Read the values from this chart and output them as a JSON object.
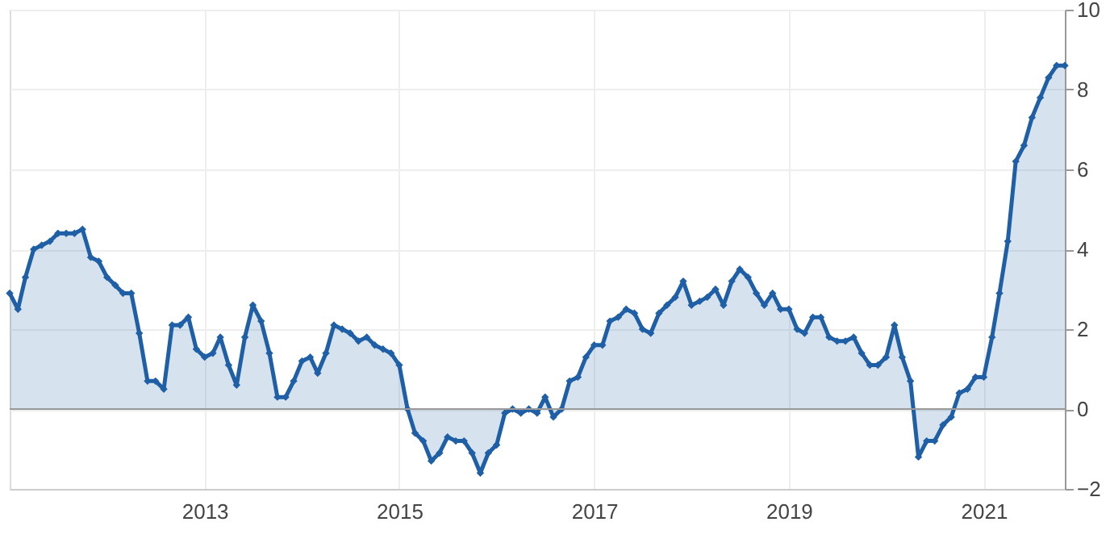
{
  "chart_data": {
    "type": "area",
    "x": [
      "2011-01",
      "2011-02",
      "2011-03",
      "2011-04",
      "2011-05",
      "2011-06",
      "2011-07",
      "2011-08",
      "2011-09",
      "2011-10",
      "2011-11",
      "2011-12",
      "2012-01",
      "2012-02",
      "2012-03",
      "2012-04",
      "2012-05",
      "2012-06",
      "2012-07",
      "2012-08",
      "2012-09",
      "2012-10",
      "2012-11",
      "2012-12",
      "2013-01",
      "2013-02",
      "2013-03",
      "2013-04",
      "2013-05",
      "2013-06",
      "2013-07",
      "2013-08",
      "2013-09",
      "2013-10",
      "2013-11",
      "2013-12",
      "2014-01",
      "2014-02",
      "2014-03",
      "2014-04",
      "2014-05",
      "2014-06",
      "2014-07",
      "2014-08",
      "2014-09",
      "2014-10",
      "2014-11",
      "2014-12",
      "2015-01",
      "2015-02",
      "2015-03",
      "2015-04",
      "2015-05",
      "2015-06",
      "2015-07",
      "2015-08",
      "2015-09",
      "2015-10",
      "2015-11",
      "2015-12",
      "2016-01",
      "2016-02",
      "2016-03",
      "2016-04",
      "2016-05",
      "2016-06",
      "2016-07",
      "2016-08",
      "2016-09",
      "2016-10",
      "2016-11",
      "2016-12",
      "2017-01",
      "2017-02",
      "2017-03",
      "2017-04",
      "2017-05",
      "2017-06",
      "2017-07",
      "2017-08",
      "2017-09",
      "2017-10",
      "2017-11",
      "2017-12",
      "2018-01",
      "2018-02",
      "2018-03",
      "2018-04",
      "2018-05",
      "2018-06",
      "2018-07",
      "2018-08",
      "2018-09",
      "2018-10",
      "2018-11",
      "2018-12",
      "2019-01",
      "2019-02",
      "2019-03",
      "2019-04",
      "2019-05",
      "2019-06",
      "2019-07",
      "2019-08",
      "2019-09",
      "2019-10",
      "2019-11",
      "2019-12",
      "2020-01",
      "2020-02",
      "2020-03",
      "2020-04",
      "2020-05",
      "2020-06",
      "2020-07",
      "2020-08",
      "2020-09",
      "2020-10",
      "2020-11",
      "2020-12",
      "2021-01",
      "2021-02",
      "2021-03",
      "2021-04",
      "2021-05",
      "2021-06",
      "2021-07",
      "2021-08",
      "2021-09",
      "2021-10",
      "2021-11"
    ],
    "series": [
      {
        "color": "#1f5fa6",
        "values": [
          2.9,
          2.5,
          3.3,
          4.0,
          4.1,
          4.2,
          4.4,
          4.4,
          4.4,
          4.5,
          3.8,
          3.7,
          3.3,
          3.1,
          2.9,
          2.9,
          1.9,
          0.7,
          0.7,
          0.5,
          2.1,
          2.1,
          2.3,
          1.5,
          1.3,
          1.4,
          1.8,
          1.1,
          0.6,
          1.8,
          2.6,
          2.2,
          1.4,
          0.3,
          0.3,
          0.7,
          1.2,
          1.3,
          0.9,
          1.4,
          2.1,
          2.0,
          1.9,
          1.7,
          1.8,
          1.6,
          1.5,
          1.4,
          1.1,
          0.0,
          -0.6,
          -0.8,
          -1.3,
          -1.1,
          -0.7,
          -0.8,
          -0.8,
          -1.1,
          -1.6,
          -1.1,
          -0.9,
          -0.1,
          0.0,
          -0.1,
          0.0,
          -0.1,
          0.3,
          -0.2,
          0.0,
          0.7,
          0.8,
          1.3,
          1.6,
          1.6,
          2.2,
          2.3,
          2.5,
          2.4,
          2.0,
          1.9,
          2.4,
          2.6,
          2.8,
          3.2,
          2.6,
          2.7,
          2.8,
          3.0,
          2.6,
          3.2,
          3.5,
          3.3,
          2.9,
          2.6,
          2.9,
          2.5,
          2.5,
          2.0,
          1.9,
          2.3,
          2.3,
          1.8,
          1.7,
          1.7,
          1.8,
          1.4,
          1.1,
          1.1,
          1.3,
          2.1,
          1.3,
          0.7,
          -1.2,
          -0.8,
          -0.8,
          -0.4,
          -0.2,
          0.4,
          0.5,
          0.8,
          0.8,
          1.8,
          2.9,
          4.2,
          6.2,
          6.6,
          7.3,
          7.8,
          8.3,
          8.6,
          8.6
        ]
      }
    ],
    "xlim": [
      "2011-01",
      "2021-11"
    ],
    "xticks": [
      "2013",
      "2015",
      "2017",
      "2019",
      "2021"
    ],
    "ylim": [
      -2,
      10
    ],
    "yticks": [
      -2,
      0,
      2,
      4,
      6,
      8,
      10
    ],
    "ref_lines": [
      {
        "axis": "y",
        "value": 0,
        "color": "#999999"
      }
    ],
    "grid": true,
    "marker": "diamond",
    "line_style": "solid"
  }
}
